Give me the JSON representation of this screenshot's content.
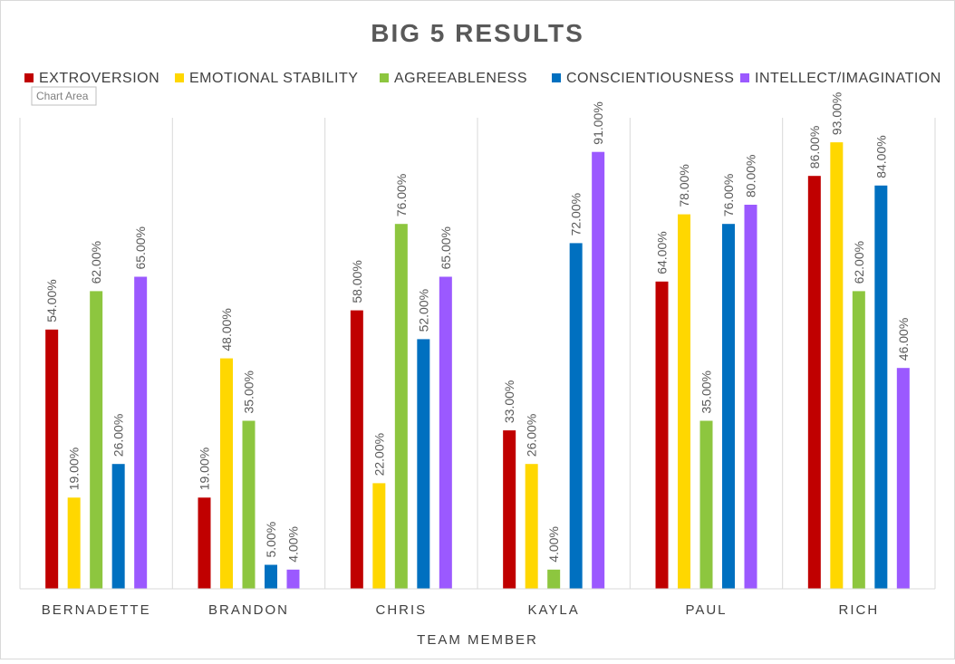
{
  "tooltip": "Chart Area",
  "chart_data": {
    "type": "bar",
    "title": "BIG 5 RESULTS",
    "xlabel": "TEAM MEMBER",
    "ylabel": "",
    "ylim": [
      0,
      100
    ],
    "grid": false,
    "legend_position": "top",
    "value_format": "percent-2dp",
    "categories": [
      "BERNADETTE",
      "BRANDON",
      "CHRIS",
      "KAYLA",
      "PAUL",
      "RICH"
    ],
    "series": [
      {
        "name": "EXTROVERSION",
        "color": "#C00000",
        "values": [
          54,
          19,
          58,
          33,
          64,
          86
        ]
      },
      {
        "name": "EMOTIONAL STABILITY",
        "color": "#FFD700",
        "values": [
          19,
          48,
          22,
          26,
          78,
          93
        ]
      },
      {
        "name": "AGREEABLENESS",
        "color": "#8DC63F",
        "values": [
          62,
          35,
          76,
          4,
          35,
          62
        ]
      },
      {
        "name": "CONSCIENTIOUSNESS",
        "color": "#0070C0",
        "values": [
          26,
          5,
          52,
          72,
          76,
          84
        ]
      },
      {
        "name": "INTELLECT/IMAGINATION",
        "color": "#9B59FF",
        "values": [
          65,
          4,
          65,
          91,
          80,
          46
        ]
      }
    ],
    "data_labels": [
      [
        "54.00%",
        "19.00%",
        "58.00%",
        "33.00%",
        "64.00%",
        "86.00%"
      ],
      [
        "19.00%",
        "48.00%",
        "22.00%",
        "26.00%",
        "78.00%",
        "93.00%"
      ],
      [
        "62.00%",
        "35.00%",
        "76.00%",
        "4.00%",
        "35.00%",
        "62.00%"
      ],
      [
        "26.00%",
        "5.00%",
        "52.00%",
        "72.00%",
        "76.00%",
        "84.00%"
      ],
      [
        "65.00%",
        "4.00%",
        "65.00%",
        "91.00%",
        "80.00%",
        "46.00%"
      ]
    ]
  }
}
